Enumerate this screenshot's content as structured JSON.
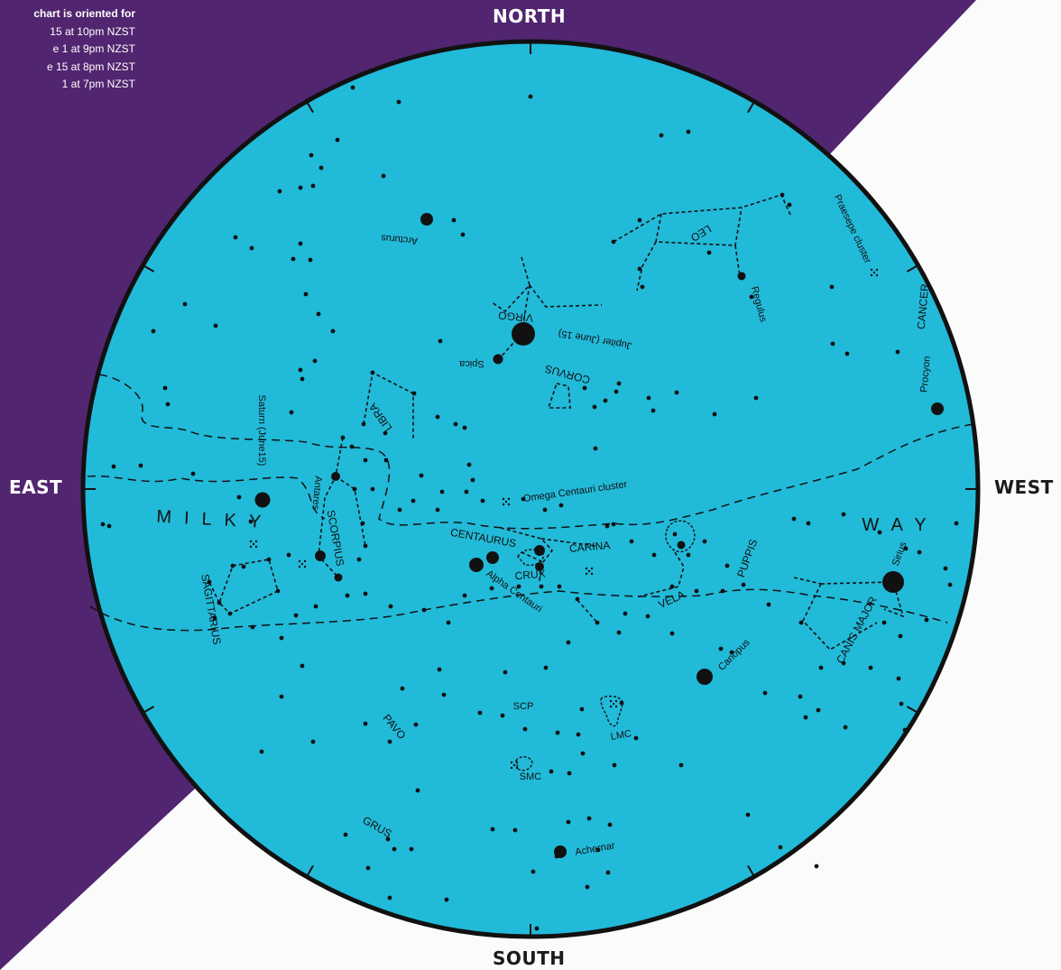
{
  "colors": {
    "purple": "#51256f",
    "sky": "#22bad9",
    "background": "#fbfbfb",
    "ink": "#111111"
  },
  "info_lines": [
    "chart is oriented for",
    "15 at 10pm NZST",
    "e 1 at 9pm NZST",
    "e 15 at 8pm NZST",
    "1 at 7pm NZST"
  ],
  "directions": {
    "north": "NORTH",
    "south": "SOUTH",
    "east": "EAST",
    "west": "WEST"
  },
  "milky_way": [
    "MILKY",
    "WAY"
  ],
  "constellations": [
    {
      "id": "leo",
      "label": "LEO"
    },
    {
      "id": "cancer",
      "label": "CANCER"
    },
    {
      "id": "virgo",
      "label": "VIRGO"
    },
    {
      "id": "corvus",
      "label": "CORVUS"
    },
    {
      "id": "libra",
      "label": "LIBRA"
    },
    {
      "id": "scorpius",
      "label": "SCORPIUS"
    },
    {
      "id": "sagittarius",
      "label": "SAGITTARIUS"
    },
    {
      "id": "centaurus",
      "label": "CENTAURUS"
    },
    {
      "id": "carina",
      "label": "CARINA"
    },
    {
      "id": "crux",
      "label": "CRUX"
    },
    {
      "id": "vela",
      "label": "VELA"
    },
    {
      "id": "puppis",
      "label": "PUPPIS"
    },
    {
      "id": "canis-major",
      "label": "CANIS MAJOR"
    },
    {
      "id": "pavo",
      "label": "PAVO"
    },
    {
      "id": "grus",
      "label": "GRUS"
    }
  ],
  "objects": [
    {
      "id": "arcturus",
      "label": "Arcturus"
    },
    {
      "id": "regulus",
      "label": "Regulus"
    },
    {
      "id": "praesepe",
      "label": "Praesepe cluster"
    },
    {
      "id": "procyon",
      "label": "Procyon"
    },
    {
      "id": "jupiter",
      "label": "Jupiter (June 15)"
    },
    {
      "id": "spica",
      "label": "Spica"
    },
    {
      "id": "saturn",
      "label": "Saturn (June15)"
    },
    {
      "id": "antares",
      "label": "Antares"
    },
    {
      "id": "omega-centauri",
      "label": "Omega Centauri  cluster"
    },
    {
      "id": "alpha-centauri",
      "label": "Alpha Centauri"
    },
    {
      "id": "sirius",
      "label": "Sirius"
    },
    {
      "id": "canopus",
      "label": "Canopus"
    },
    {
      "id": "scp",
      "label": "SCP"
    },
    {
      "id": "lmc",
      "label": "LMC"
    },
    {
      "id": "smc",
      "label": "SMC"
    },
    {
      "id": "achernar",
      "label": "Achernar"
    }
  ]
}
